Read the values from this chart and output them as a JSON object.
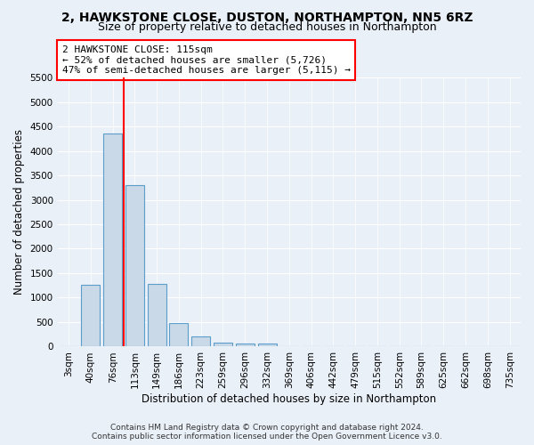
{
  "title_line1": "2, HAWKSTONE CLOSE, DUSTON, NORTHAMPTON, NN5 6RZ",
  "title_line2": "Size of property relative to detached houses in Northampton",
  "xlabel": "Distribution of detached houses by size in Northampton",
  "ylabel": "Number of detached properties",
  "footnote": "Contains HM Land Registry data © Crown copyright and database right 2024.\nContains public sector information licensed under the Open Government Licence v3.0.",
  "bar_labels": [
    "3sqm",
    "40sqm",
    "76sqm",
    "113sqm",
    "149sqm",
    "186sqm",
    "223sqm",
    "259sqm",
    "296sqm",
    "332sqm",
    "369sqm",
    "406sqm",
    "442sqm",
    "479sqm",
    "515sqm",
    "552sqm",
    "589sqm",
    "625sqm",
    "662sqm",
    "698sqm",
    "735sqm"
  ],
  "bar_values": [
    0,
    1270,
    4350,
    3300,
    1280,
    490,
    215,
    90,
    70,
    55,
    0,
    0,
    0,
    0,
    0,
    0,
    0,
    0,
    0,
    0,
    0
  ],
  "bar_color": "#c9d9e8",
  "bar_edge_color": "#5a9ec9",
  "annotation_line1": "2 HAWKSTONE CLOSE: 115sqm",
  "annotation_line2": "← 52% of detached houses are smaller (5,726)",
  "annotation_line3": "47% of semi-detached houses are larger (5,115) →",
  "vline_x": 2.5,
  "vline_color": "red",
  "box_color": "red",
  "ylim": [
    0,
    5500
  ],
  "yticks": [
    0,
    500,
    1000,
    1500,
    2000,
    2500,
    3000,
    3500,
    4000,
    4500,
    5000,
    5500
  ],
  "background_color": "#eaf0f8",
  "plot_bg_color": "#eaf0f8",
  "title1_fontsize": 10,
  "title2_fontsize": 9,
  "xlabel_fontsize": 8.5,
  "ylabel_fontsize": 8.5,
  "tick_fontsize": 7.5,
  "annotation_fontsize": 8,
  "footnote_fontsize": 6.5
}
